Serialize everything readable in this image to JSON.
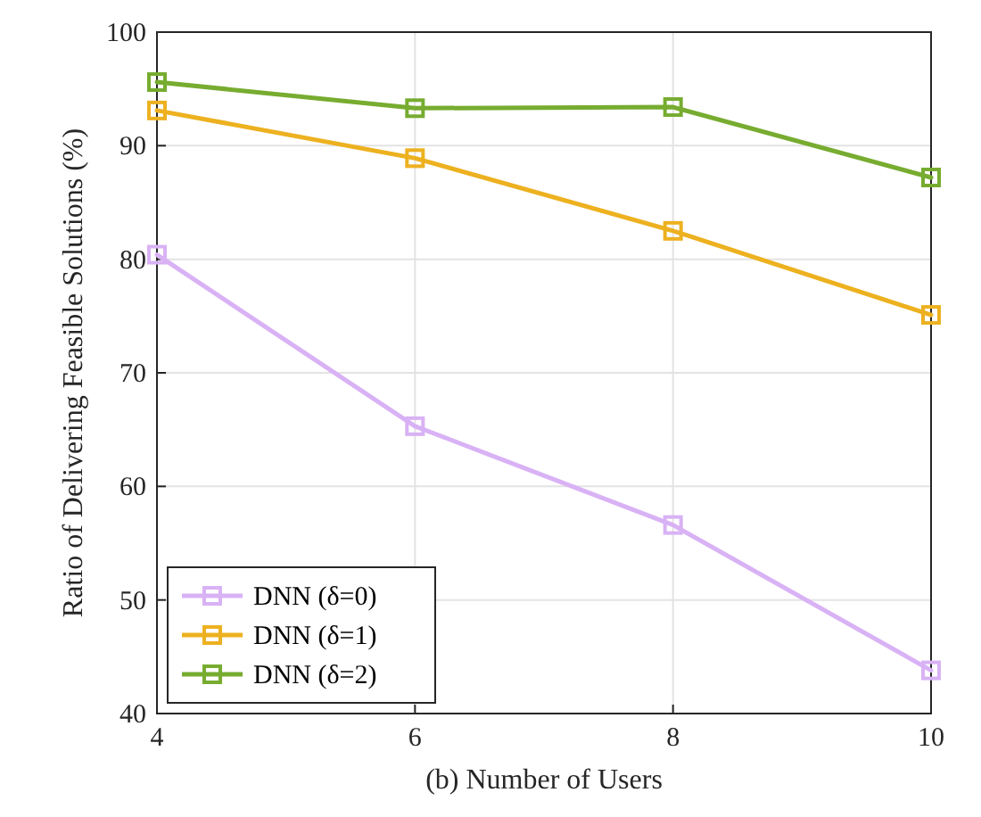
{
  "chart_data": {
    "type": "line",
    "xlabel": "(b) Number of Users",
    "ylabel": "Ratio of Delivering Feasible Solutions (%)",
    "x": [
      4,
      6,
      8,
      10
    ],
    "xlim": [
      4,
      10
    ],
    "xticks": [
      4,
      6,
      8,
      10
    ],
    "ylim": [
      40,
      100
    ],
    "yticks": [
      40,
      50,
      60,
      70,
      80,
      90,
      100
    ],
    "grid": true,
    "legend": "bottom left",
    "marker": "square",
    "line_style": "solid",
    "series": [
      {
        "name": "DNN (δ=0)",
        "color": "#d9b2f5",
        "values": [
          80.4,
          65.3,
          56.6,
          43.8
        ]
      },
      {
        "name": "DNN (δ=1)",
        "color": "#edb120",
        "values": [
          93.1,
          88.9,
          82.5,
          75.1
        ]
      },
      {
        "name": "DNN (δ=2)",
        "color": "#77ac30",
        "values": [
          95.6,
          93.3,
          93.4,
          87.2
        ]
      }
    ]
  }
}
